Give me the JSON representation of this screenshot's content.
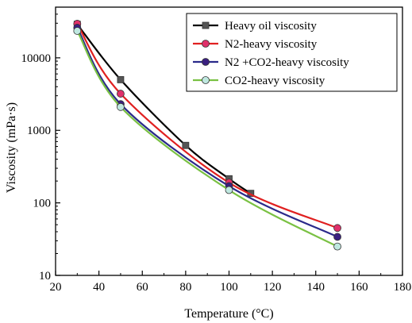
{
  "chart_data": {
    "type": "line",
    "title": "",
    "xlabel": "Temperature (°C)",
    "ylabel": "Viscosity (mPa·s)",
    "xlim": [
      20,
      180
    ],
    "ylim": [
      10,
      50000
    ],
    "yscale": "log",
    "xticks": [
      20,
      40,
      60,
      80,
      100,
      120,
      140,
      160,
      180
    ],
    "xtick_labels": [
      "20",
      "40",
      "60",
      "80",
      "100",
      "120",
      "140",
      "160",
      "180"
    ],
    "yticks": [
      10,
      100,
      1000,
      10000
    ],
    "ytick_labels": [
      "10",
      "100",
      "1000",
      "10000"
    ],
    "grid": false,
    "legend_position": "top-right",
    "series": [
      {
        "name": "Heavy oil viscosity",
        "color": "#000000",
        "marker": "square",
        "marker_fill": "#555555",
        "x": [
          30,
          50,
          80,
          100,
          110
        ],
        "y": [
          29000,
          5000,
          620,
          215,
          135
        ]
      },
      {
        "name": "N2-heavy viscosity",
        "color": "#e02020",
        "marker": "circle",
        "marker_fill": "#e0306a",
        "x": [
          30,
          50,
          100,
          150
        ],
        "y": [
          29500,
          3200,
          190,
          45
        ]
      },
      {
        "name": "N2 +CO2-heavy viscosity",
        "color": "#2a2a8a",
        "marker": "circle",
        "marker_fill": "#3a2080",
        "x": [
          30,
          50,
          100,
          150
        ],
        "y": [
          26000,
          2300,
          170,
          34
        ]
      },
      {
        "name": "CO2-heavy viscosity",
        "color": "#7ac143",
        "marker": "circle",
        "marker_fill": "#bfe8e0",
        "x": [
          30,
          50,
          100,
          150
        ],
        "y": [
          23500,
          2100,
          150,
          25
        ]
      }
    ]
  }
}
